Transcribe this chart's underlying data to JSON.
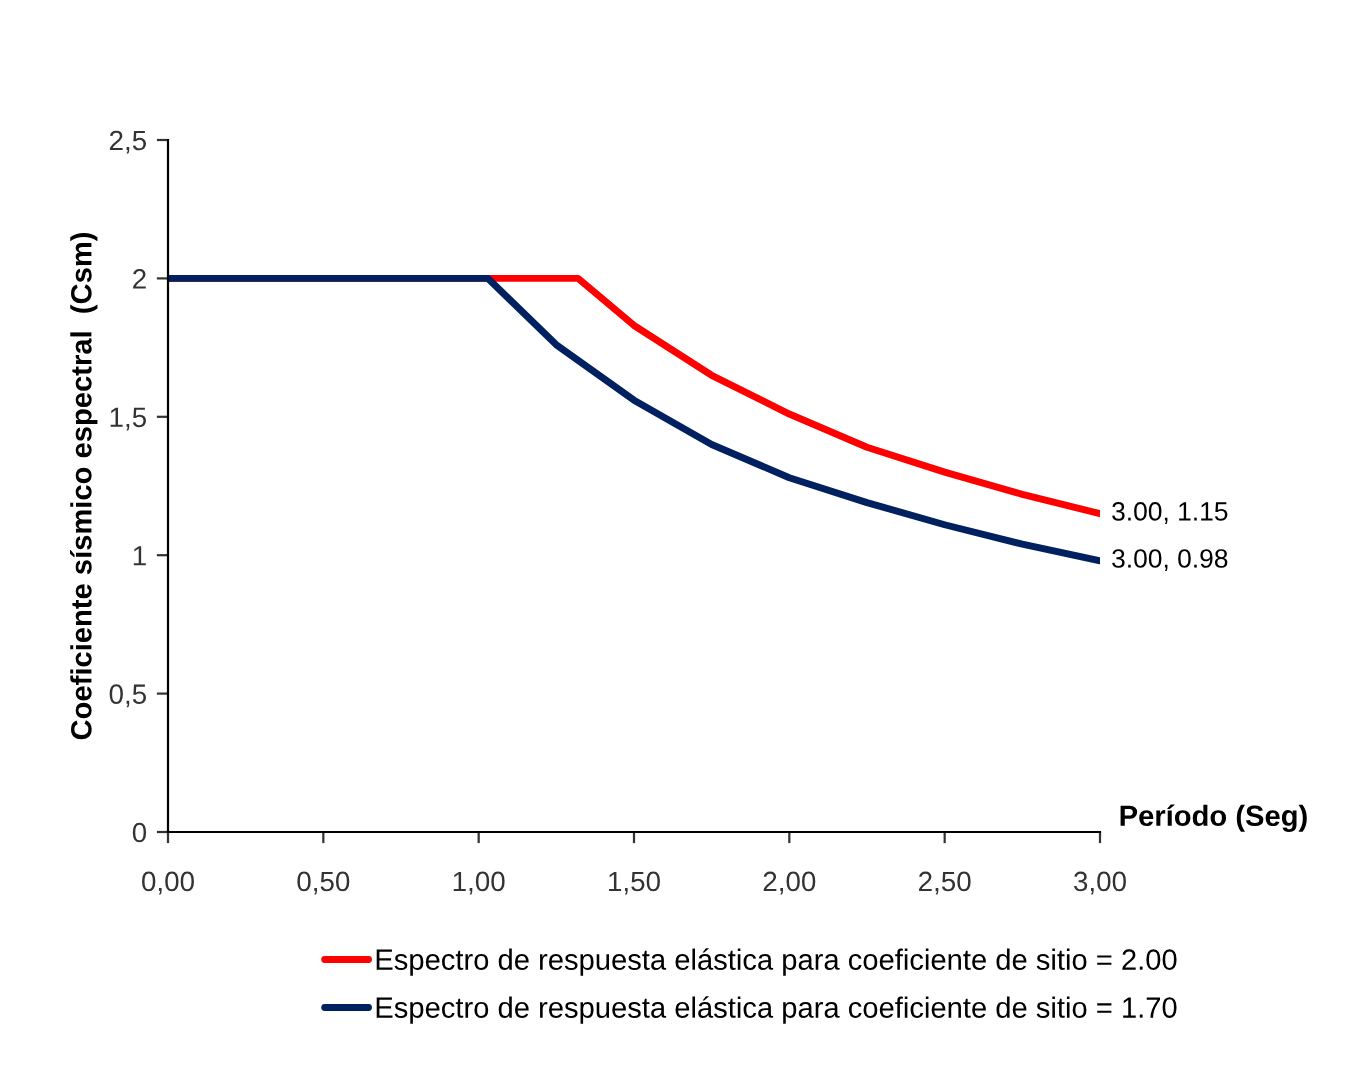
{
  "chart_data": {
    "type": "line",
    "xlabel": "Período (Seg)",
    "ylabel": "Coeficiente sísmico espectral  (Csm)",
    "xlim": [
      0,
      3
    ],
    "ylim": [
      0,
      2.5
    ],
    "xticks": [
      {
        "value": 0,
        "label": "0,00"
      },
      {
        "value": 0.5,
        "label": "0,50"
      },
      {
        "value": 1,
        "label": "1,00"
      },
      {
        "value": 1.5,
        "label": "1,50"
      },
      {
        "value": 2,
        "label": "2,00"
      },
      {
        "value": 2.5,
        "label": "2,50"
      },
      {
        "value": 3,
        "label": "3,00"
      }
    ],
    "yticks": [
      0,
      {
        "value": 0.5,
        "label": "0,5"
      },
      1,
      {
        "value": 1.5,
        "label": "1,5"
      },
      2,
      {
        "value": 2.5,
        "label": "2,5"
      }
    ],
    "grid": false,
    "legend": "bottom",
    "marker": "none",
    "line_style": "solid",
    "series": [
      {
        "name": "Espectro de respuesta elástica para coeficiente de sitio = 2.00",
        "color": "#ff0000",
        "x": [
          0,
          1.32,
          1.5,
          1.75,
          2,
          2.25,
          2.5,
          2.75,
          3
        ],
        "values": [
          2,
          2,
          1.83,
          1.65,
          1.51,
          1.39,
          1.3,
          1.22,
          1.15
        ]
      },
      {
        "name": "Espectro de respuesta elástica para coeficiente de sitio = 1.70",
        "color": "#002060",
        "x": [
          0,
          1.03,
          1.25,
          1.5,
          1.75,
          2,
          2.25,
          2.5,
          2.75,
          3
        ],
        "values": [
          2,
          2,
          1.76,
          1.56,
          1.4,
          1.28,
          1.19,
          1.11,
          1.04,
          0.98
        ]
      }
    ],
    "annotations": [
      {
        "text": "3.00, 1.15",
        "x": 3,
        "y": 1.15
      },
      {
        "text": "3.00, 0.98",
        "x": 3,
        "y": 0.98
      }
    ]
  }
}
